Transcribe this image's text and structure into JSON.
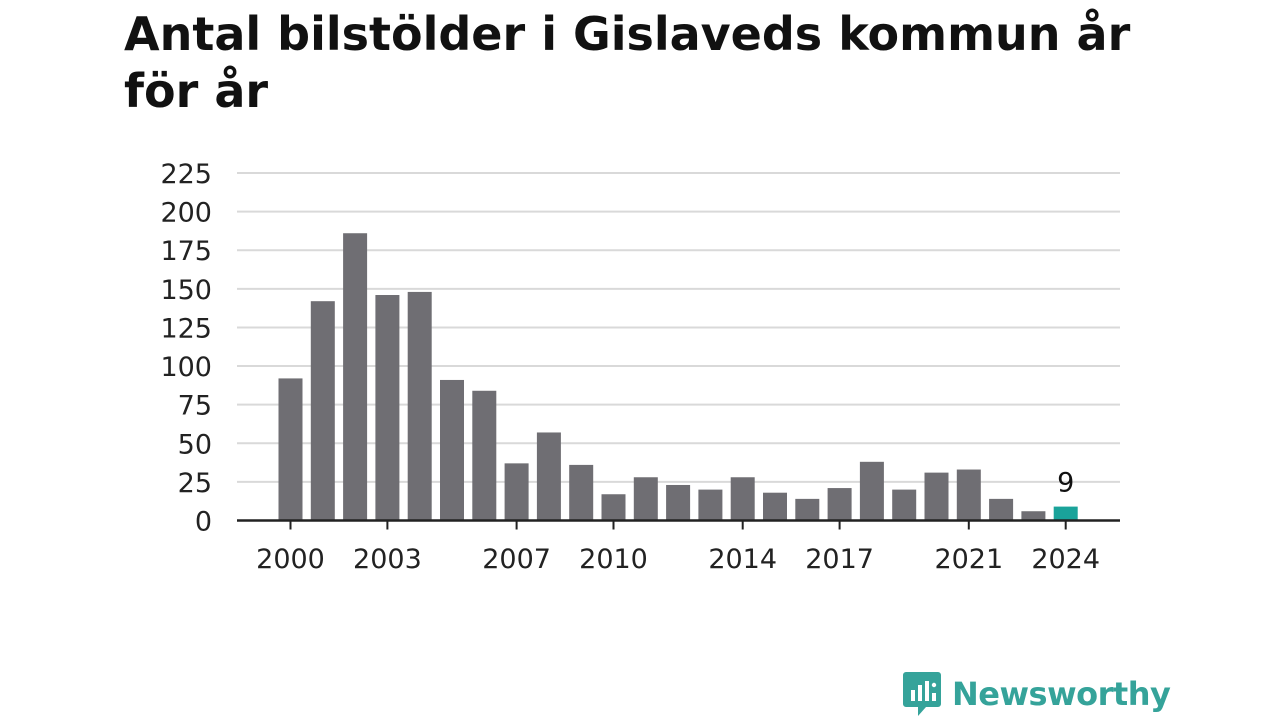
{
  "title": "Antal bilstölder i Gislaveds kommun år för år",
  "brand": {
    "name": "Newsworthy",
    "icon": "newsworthy-logo-icon"
  },
  "colors": {
    "bar": "#6f6e73",
    "highlight": "#1aa39a",
    "grid": "#d9d9d9",
    "axis": "#222222",
    "brand": "#35a39a"
  },
  "chart_data": {
    "type": "bar",
    "title": "Antal bilstölder i Gislaveds kommun år för år",
    "xlabel": "",
    "ylabel": "",
    "ylim": [
      0,
      225
    ],
    "yticks": [
      "0",
      "25",
      "50",
      "75",
      "100",
      "125",
      "150",
      "175",
      "200",
      "225"
    ],
    "xticks": [
      "2000",
      "2003",
      "2007",
      "2010",
      "2014",
      "2017",
      "2021",
      "2024"
    ],
    "categories": [
      "2000",
      "2001",
      "2002",
      "2003",
      "2004",
      "2005",
      "2006",
      "2007",
      "2008",
      "2009",
      "2010",
      "2011",
      "2012",
      "2013",
      "2014",
      "2015",
      "2016",
      "2017",
      "2018",
      "2019",
      "2020",
      "2021",
      "2022",
      "2023",
      "2024"
    ],
    "values": [
      92,
      142,
      186,
      146,
      148,
      91,
      84,
      37,
      57,
      36,
      17,
      28,
      23,
      20,
      28,
      18,
      14,
      21,
      38,
      20,
      31,
      33,
      14,
      6,
      9
    ],
    "highlight": {
      "category": "2024",
      "label": "9"
    },
    "grid": true
  }
}
